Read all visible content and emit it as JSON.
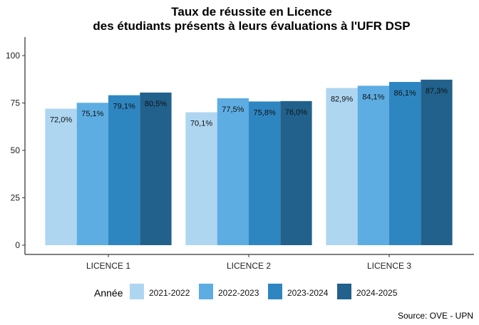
{
  "chart_data": {
    "type": "bar",
    "title": [
      "Taux de réussite en Licence",
      "des étudiants présents à leurs évaluations à l'UFR DSP"
    ],
    "xlabel": "",
    "ylabel": "",
    "categories": [
      "LICENCE 1",
      "LICENCE 2",
      "LICENCE 3"
    ],
    "series": [
      {
        "name": "2021-2022",
        "color": "#AED6F1",
        "values": [
          72.0,
          70.1,
          82.9
        ],
        "labels": [
          "72,0%",
          "70,1%",
          "82,9%"
        ]
      },
      {
        "name": "2022-2023",
        "color": "#5DADE2",
        "values": [
          75.1,
          77.5,
          84.1
        ],
        "labels": [
          "75,1%",
          "77,5%",
          "84,1%"
        ]
      },
      {
        "name": "2023-2024",
        "color": "#2E86C1",
        "values": [
          79.1,
          75.8,
          86.1
        ],
        "labels": [
          "79,1%",
          "75,8%",
          "86,1%"
        ]
      },
      {
        "name": "2024-2025",
        "color": "#21618C",
        "values": [
          80.5,
          76.0,
          87.3
        ],
        "labels": [
          "80,5%",
          "76,0%",
          "87,3%"
        ]
      }
    ],
    "ylim": [
      -5,
      110
    ],
    "yticks": [
      0,
      25,
      50,
      75,
      100
    ],
    "grid": false,
    "legend": {
      "title": "Année",
      "placement": "bottom"
    },
    "caption": "Source: OVE - UPN"
  }
}
